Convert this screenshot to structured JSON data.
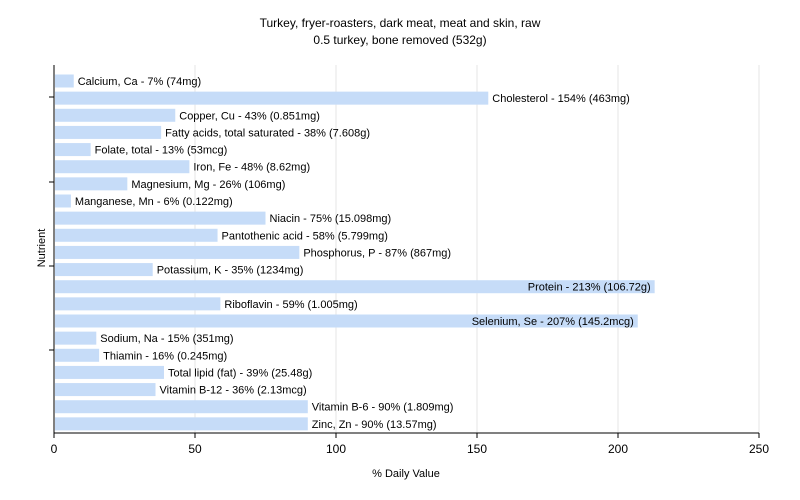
{
  "chart_data": {
    "type": "bar",
    "orientation": "horizontal",
    "title": "Turkey, fryer-roasters, dark meat, meat and skin, raw",
    "subtitle": "0.5 turkey, bone removed (532g)",
    "xlabel": "% Daily Value",
    "ylabel": "Nutrient",
    "xlim": [
      0,
      250
    ],
    "xticks": [
      0,
      50,
      100,
      150,
      200,
      250
    ],
    "grid": "vertical",
    "bar_color": "#c6dcf8",
    "categories": [
      "Calcium, Ca",
      "Cholesterol",
      "Copper, Cu",
      "Fatty acids, total saturated",
      "Folate, total",
      "Iron, Fe",
      "Magnesium, Mg",
      "Manganese, Mn",
      "Niacin",
      "Pantothenic acid",
      "Phosphorus, P",
      "Potassium, K",
      "Protein",
      "Riboflavin",
      "Selenium, Se",
      "Sodium, Na",
      "Thiamin",
      "Total lipid (fat)",
      "Vitamin B-12",
      "Vitamin B-6",
      "Zinc, Zn"
    ],
    "values": [
      7,
      154,
      43,
      38,
      13,
      48,
      26,
      6,
      75,
      58,
      87,
      35,
      213,
      59,
      207,
      15,
      16,
      39,
      36,
      90,
      90
    ],
    "labels": [
      "Calcium, Ca - 7% (74mg)",
      "Cholesterol - 154% (463mg)",
      "Copper, Cu - 43% (0.851mg)",
      "Fatty acids, total saturated - 38% (7.608g)",
      "Folate, total - 13% (53mcg)",
      "Iron, Fe - 48% (8.62mg)",
      "Magnesium, Mg - 26% (106mg)",
      "Manganese, Mn - 6% (0.122mg)",
      "Niacin - 75% (15.098mg)",
      "Pantothenic acid - 58% (5.799mg)",
      "Phosphorus, P - 87% (867mg)",
      "Potassium, K - 35% (1234mg)",
      "Protein - 213% (106.72g)",
      "Riboflavin - 59% (1.005mg)",
      "Selenium, Se - 207% (145.2mcg)",
      "Sodium, Na - 15% (351mg)",
      "Thiamin - 16% (0.245mg)",
      "Total lipid (fat) - 39% (25.48g)",
      "Vitamin B-12 - 36% (2.13mcg)",
      "Vitamin B-6 - 90% (1.809mg)",
      "Zinc, Zn - 90% (13.57mg)"
    ]
  }
}
